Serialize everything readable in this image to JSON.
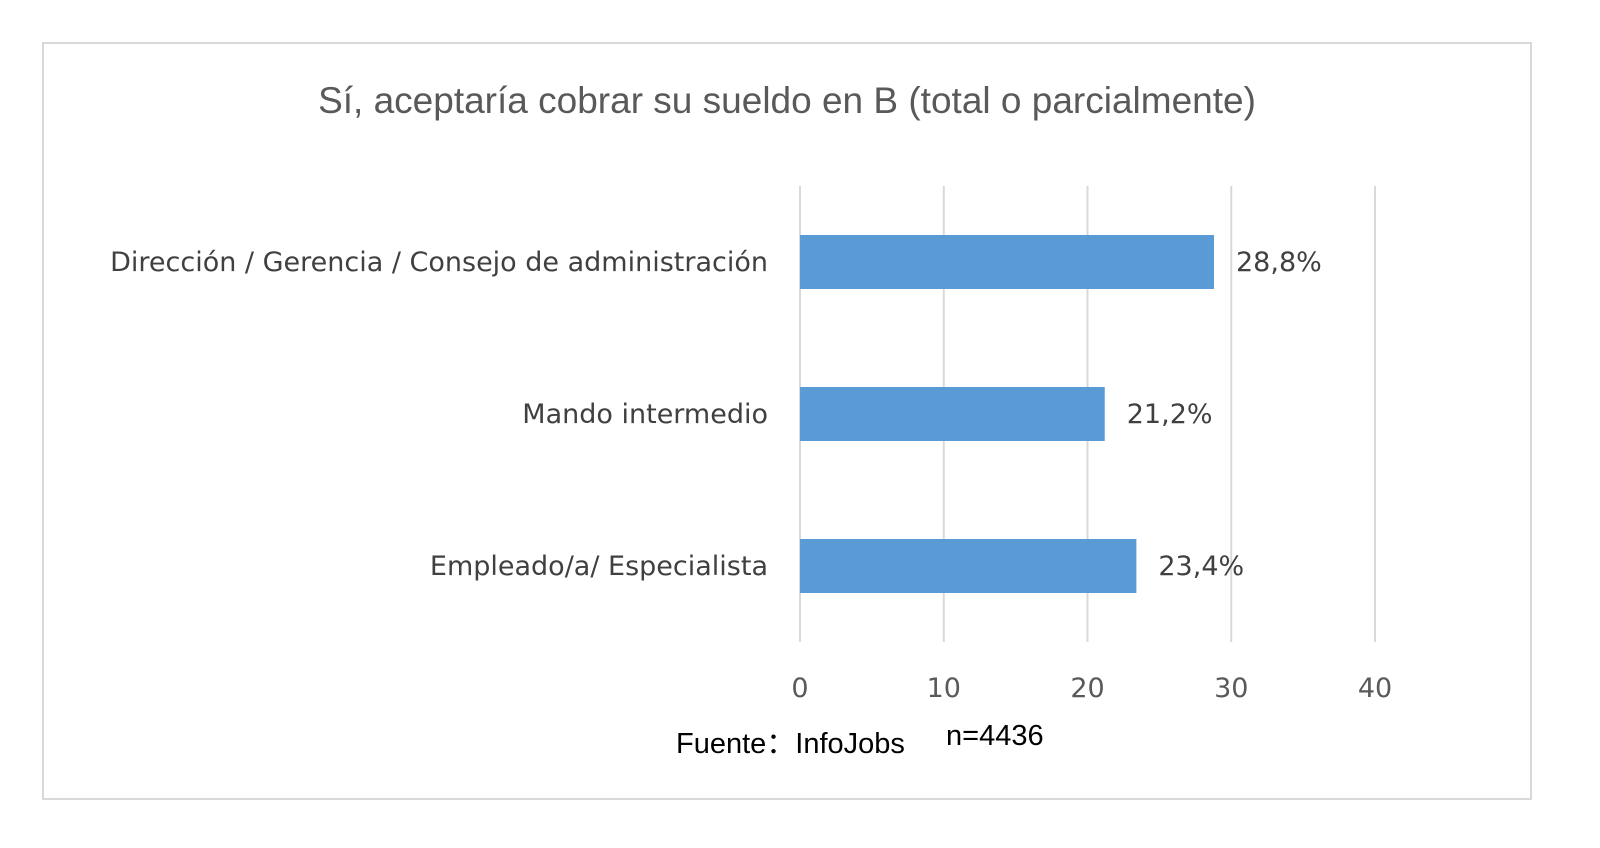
{
  "chart_data": {
    "type": "bar",
    "orientation": "horizontal",
    "title": "Sí, aceptaría cobrar su sueldo en B (total o parcialmente)",
    "categories": [
      "Dirección / Gerencia / Consejo de administración",
      "Mando intermedio",
      "Empleado/a/ Especialista"
    ],
    "values": [
      28.8,
      21.2,
      23.4
    ],
    "data_labels": [
      "28,8%",
      "21,2%",
      "23,4%"
    ],
    "xlim": [
      0,
      40
    ],
    "xticks": [
      0,
      10,
      20,
      30,
      40
    ],
    "xlabel": "",
    "ylabel": "",
    "grid": "vertical",
    "legend": "none",
    "bar_color": "#5b9bd5"
  },
  "footer": {
    "source": "Fuente：InfoJobs",
    "sample": "n=4436"
  }
}
